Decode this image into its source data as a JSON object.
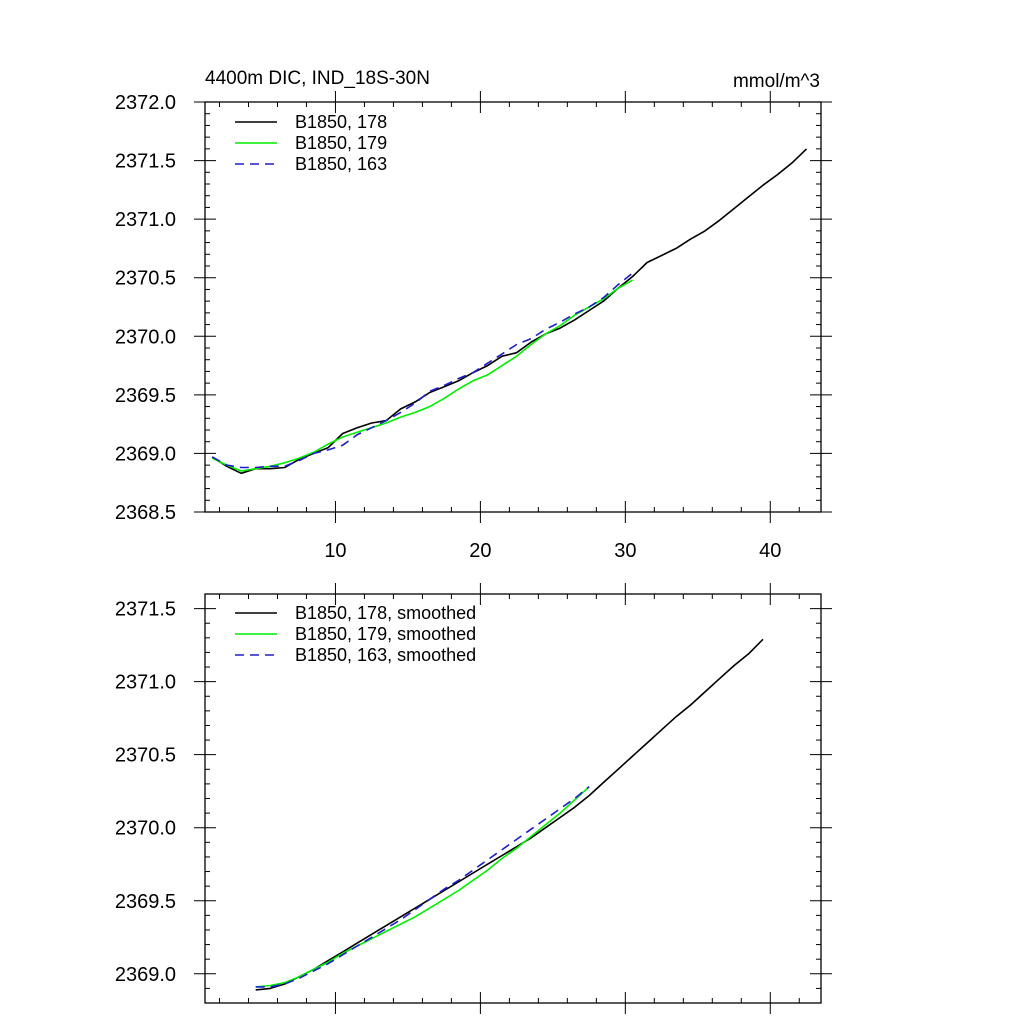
{
  "figure": {
    "title_left": "4400m DIC, IND_18S-30N",
    "title_right": "mmol/m^3"
  },
  "chart_data": [
    {
      "type": "line",
      "title": "4400m DIC, IND_18S-30N",
      "units": "mmol/m^3",
      "xlim": [
        1,
        43.5
      ],
      "ylim": [
        2368.5,
        2372.0
      ],
      "xticks": [
        10,
        20,
        30,
        40
      ],
      "xtick_labels": [
        "10",
        "20",
        "30",
        "40"
      ],
      "yticks": [
        2368.5,
        2369.0,
        2369.5,
        2370.0,
        2370.5,
        2371.0,
        2371.5,
        2372.0
      ],
      "ytick_labels": [
        "2368.5",
        "2369.0",
        "2369.5",
        "2370.0",
        "2370.5",
        "2371.0",
        "2371.5",
        "2372.0"
      ],
      "legend_position": "top-left",
      "series": [
        {
          "name": "B1850, 178",
          "color": "#000000",
          "dash": "solid",
          "x": [
            1.5,
            2.5,
            3.5,
            4.5,
            5.5,
            6.5,
            7.5,
            8.5,
            9.5,
            10.5,
            11.5,
            12.5,
            13.5,
            14.5,
            15.5,
            16.5,
            17.5,
            18.5,
            19.5,
            20.5,
            21.5,
            22.5,
            23.5,
            24.5,
            25.5,
            26.5,
            27.5,
            28.5,
            29.5,
            30.5,
            31.5,
            32.5,
            33.5,
            34.5,
            35.5,
            36.5,
            37.5,
            38.5,
            39.5,
            40.5,
            41.5,
            42.5
          ],
          "y": [
            2368.97,
            2368.89,
            2368.83,
            2368.87,
            2368.87,
            2368.88,
            2368.95,
            2369.0,
            2369.05,
            2369.17,
            2369.22,
            2369.26,
            2369.28,
            2369.38,
            2369.44,
            2369.52,
            2369.57,
            2369.62,
            2369.69,
            2369.75,
            2369.83,
            2369.86,
            2369.95,
            2370.02,
            2370.07,
            2370.14,
            2370.22,
            2370.3,
            2370.41,
            2370.51,
            2370.63,
            2370.69,
            2370.75,
            2370.83,
            2370.9,
            2370.99,
            2371.09,
            2371.19,
            2371.29,
            2371.38,
            2371.48,
            2371.6
          ]
        },
        {
          "name": "B1850, 179",
          "color": "#00ee00",
          "dash": "solid",
          "x": [
            1.5,
            2.5,
            3.5,
            4.5,
            5.5,
            6.5,
            7.5,
            8.5,
            9.5,
            10.5,
            11.5,
            12.5,
            13.5,
            14.5,
            15.5,
            16.5,
            17.5,
            18.5,
            19.5,
            20.5,
            21.5,
            22.5,
            23.5,
            24.5,
            25.5,
            26.5,
            27.5,
            28.5,
            29.5,
            30.5
          ],
          "y": [
            2368.96,
            2368.9,
            2368.85,
            2368.87,
            2368.89,
            2368.92,
            2368.96,
            2369.01,
            2369.08,
            2369.14,
            2369.18,
            2369.22,
            2369.26,
            2369.31,
            2369.35,
            2369.4,
            2369.47,
            2369.55,
            2369.62,
            2369.67,
            2369.75,
            2369.83,
            2369.93,
            2370.02,
            2370.09,
            2370.18,
            2370.25,
            2370.32,
            2370.41,
            2370.48
          ]
        },
        {
          "name": "B1850, 163",
          "color": "#1e1ec8",
          "dash": "dashed",
          "x": [
            1.5,
            2.5,
            3.5,
            4.5,
            5.5,
            6.5,
            7.5,
            8.5,
            9.5,
            10.5,
            11.5,
            12.5,
            13.5,
            14.5,
            15.5,
            16.5,
            17.5,
            18.5,
            19.5,
            20.5,
            21.5,
            22.5,
            23.5,
            24.5,
            25.5,
            26.5,
            27.5,
            28.5,
            29.5,
            30.5
          ],
          "y": [
            2368.97,
            2368.9,
            2368.88,
            2368.88,
            2368.89,
            2368.89,
            2368.94,
            2369.0,
            2369.03,
            2369.07,
            2369.16,
            2369.22,
            2369.28,
            2369.35,
            2369.43,
            2369.53,
            2369.58,
            2369.64,
            2369.69,
            2369.77,
            2369.85,
            2369.93,
            2369.98,
            2370.06,
            2370.12,
            2370.19,
            2370.25,
            2370.33,
            2370.44,
            2370.54
          ]
        }
      ]
    },
    {
      "type": "line",
      "xlim": [
        1,
        43.5
      ],
      "ylim": [
        2368.8,
        2371.6
      ],
      "xticks": [
        10,
        20,
        30,
        40
      ],
      "xtick_labels": [
        "",
        "",
        "",
        ""
      ],
      "yticks": [
        2369.0,
        2369.5,
        2370.0,
        2370.5,
        2371.0,
        2371.5
      ],
      "ytick_labels": [
        "2369.0",
        "2369.5",
        "2370.0",
        "2370.5",
        "2371.0",
        "2371.5"
      ],
      "legend_position": "top-left",
      "series": [
        {
          "name": "B1850, 178, smoothed",
          "color": "#000000",
          "dash": "solid",
          "x": [
            4.5,
            5.5,
            6.5,
            7.5,
            8.5,
            9.5,
            10.5,
            11.5,
            12.5,
            13.5,
            14.5,
            15.5,
            16.5,
            17.5,
            18.5,
            19.5,
            20.5,
            21.5,
            22.5,
            23.5,
            24.5,
            25.5,
            26.5,
            27.5,
            28.5,
            29.5,
            30.5,
            31.5,
            32.5,
            33.5,
            34.5,
            35.5,
            36.5,
            37.5,
            38.5,
            39.5
          ],
          "y": [
            2368.89,
            2368.9,
            2368.93,
            2368.98,
            2369.03,
            2369.09,
            2369.15,
            2369.21,
            2369.27,
            2369.33,
            2369.39,
            2369.45,
            2369.51,
            2369.57,
            2369.63,
            2369.69,
            2369.75,
            2369.81,
            2369.87,
            2369.93,
            2370.0,
            2370.07,
            2370.14,
            2370.22,
            2370.31,
            2370.4,
            2370.49,
            2370.58,
            2370.67,
            2370.76,
            2370.84,
            2370.93,
            2371.02,
            2371.11,
            2371.19,
            2371.29
          ]
        },
        {
          "name": "B1850, 179, smoothed",
          "color": "#00ee00",
          "dash": "solid",
          "x": [
            4.5,
            5.5,
            6.5,
            7.5,
            8.5,
            9.5,
            10.5,
            11.5,
            12.5,
            13.5,
            14.5,
            15.5,
            16.5,
            17.5,
            18.5,
            19.5,
            20.5,
            21.5,
            22.5,
            23.5,
            24.5,
            25.5,
            26.5,
            27.5
          ],
          "y": [
            2368.91,
            2368.92,
            2368.94,
            2368.98,
            2369.03,
            2369.08,
            2369.14,
            2369.19,
            2369.24,
            2369.29,
            2369.34,
            2369.39,
            2369.45,
            2369.51,
            2369.57,
            2369.64,
            2369.71,
            2369.79,
            2369.86,
            2369.94,
            2370.02,
            2370.1,
            2370.19,
            2370.28
          ]
        },
        {
          "name": "B1850, 163, smoothed",
          "color": "#1e1ec8",
          "dash": "dashed",
          "x": [
            4.5,
            5.5,
            6.5,
            7.5,
            8.5,
            9.5,
            10.5,
            11.5,
            12.5,
            13.5,
            14.5,
            15.5,
            16.5,
            17.5,
            18.5,
            19.5,
            20.5,
            21.5,
            22.5,
            23.5,
            24.5,
            25.5,
            26.5,
            27.5
          ],
          "y": [
            2368.91,
            2368.91,
            2368.93,
            2368.97,
            2369.02,
            2369.07,
            2369.13,
            2369.19,
            2369.25,
            2369.31,
            2369.37,
            2369.44,
            2369.51,
            2369.58,
            2369.64,
            2369.71,
            2369.78,
            2369.85,
            2369.92,
            2369.99,
            2370.06,
            2370.13,
            2370.2,
            2370.28
          ]
        }
      ]
    }
  ]
}
